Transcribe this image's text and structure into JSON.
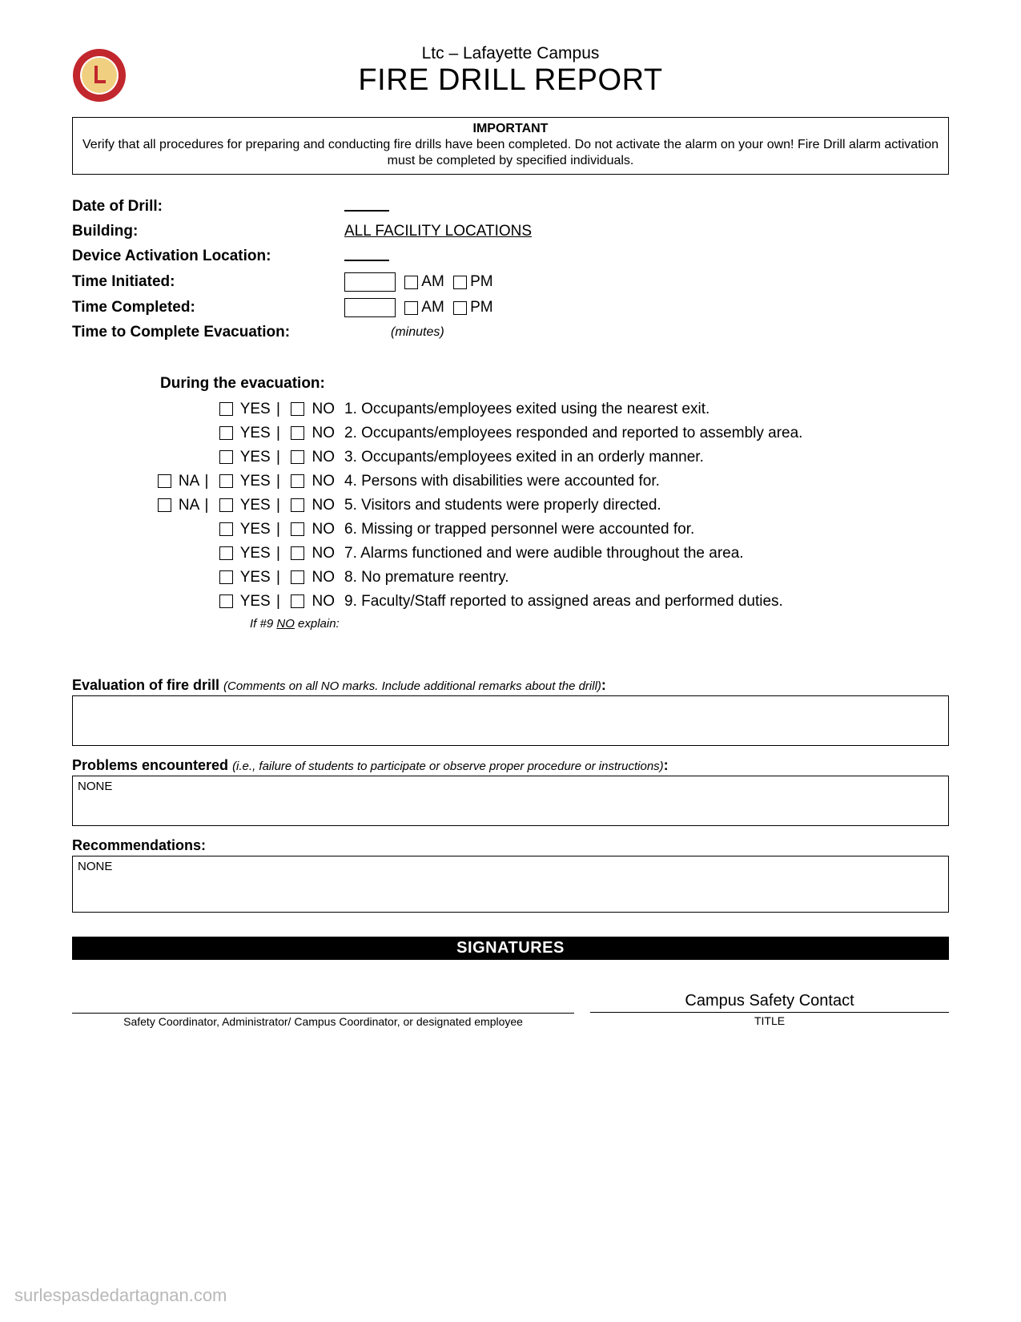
{
  "header": {
    "subtitle": "Ltc – Lafayette Campus",
    "title": "FIRE DRILL REPORT",
    "logo": {
      "outer_color": "#c1272d",
      "inner_color": "#f0d080",
      "text_color": "#ffffff"
    }
  },
  "important": {
    "label": "IMPORTANT",
    "text": "Verify that all procedures for preparing and conducting fire drills have been completed. Do not activate the alarm on your own! Fire Drill alarm activation must be completed by specified individuals."
  },
  "fields": {
    "date_label": "Date of Drill:",
    "building_label": "Building:",
    "building_value": "ALL FACILITY LOCATIONS",
    "device_label": "Device Activation Location:",
    "time_init_label": "Time Initiated:",
    "time_comp_label": "Time Completed:",
    "evac_time_label": "Time to Complete Evacuation:",
    "am": "AM",
    "pm": "PM",
    "minutes": "(minutes)"
  },
  "evacuation": {
    "heading": "During the evacuation:",
    "yes": "YES",
    "no": "NO",
    "na": "NA",
    "items": [
      {
        "num": "1.",
        "has_na": false,
        "text": "Occupants/employees exited using the nearest exit."
      },
      {
        "num": "2.",
        "has_na": false,
        "text": "Occupants/employees responded and reported to assembly area."
      },
      {
        "num": "3.",
        "has_na": false,
        "text": "Occupants/employees exited in an orderly manner."
      },
      {
        "num": "4.",
        "has_na": true,
        "text": "Persons with disabilities were accounted for."
      },
      {
        "num": "5.",
        "has_na": true,
        "text": "Visitors and students were properly directed."
      },
      {
        "num": "6.",
        "has_na": false,
        "text": "Missing or trapped personnel were accounted for."
      },
      {
        "num": "7.",
        "has_na": false,
        "text": "Alarms functioned and were audible throughout the area."
      },
      {
        "num": "8.",
        "has_na": false,
        "text": "No premature reentry."
      },
      {
        "num": "9.",
        "has_na": false,
        "text": "Faculty/Staff reported to assigned areas and performed duties."
      }
    ],
    "explain_prefix": "If #9 ",
    "explain_underline": "NO",
    "explain_suffix": " explain:"
  },
  "evaluation": {
    "label": "Evaluation of fire drill",
    "hint": "(Comments on all NO marks. Include additional remarks about the drill)",
    "colon": ":",
    "value": ""
  },
  "problems": {
    "label": "Problems encountered",
    "hint": "(i.e., failure of students to participate or observe proper procedure or instructions)",
    "colon": ":",
    "value": "NONE"
  },
  "recommendations": {
    "label": "Recommendations:",
    "value": "NONE"
  },
  "signatures": {
    "bar": "SIGNATURES",
    "left_caption": "Safety Coordinator, Administrator/ Campus Coordinator, or designated employee",
    "right_value": "Campus Safety Contact",
    "right_caption": "TITLE"
  },
  "watermark": "surlespasdedartagnan.com"
}
